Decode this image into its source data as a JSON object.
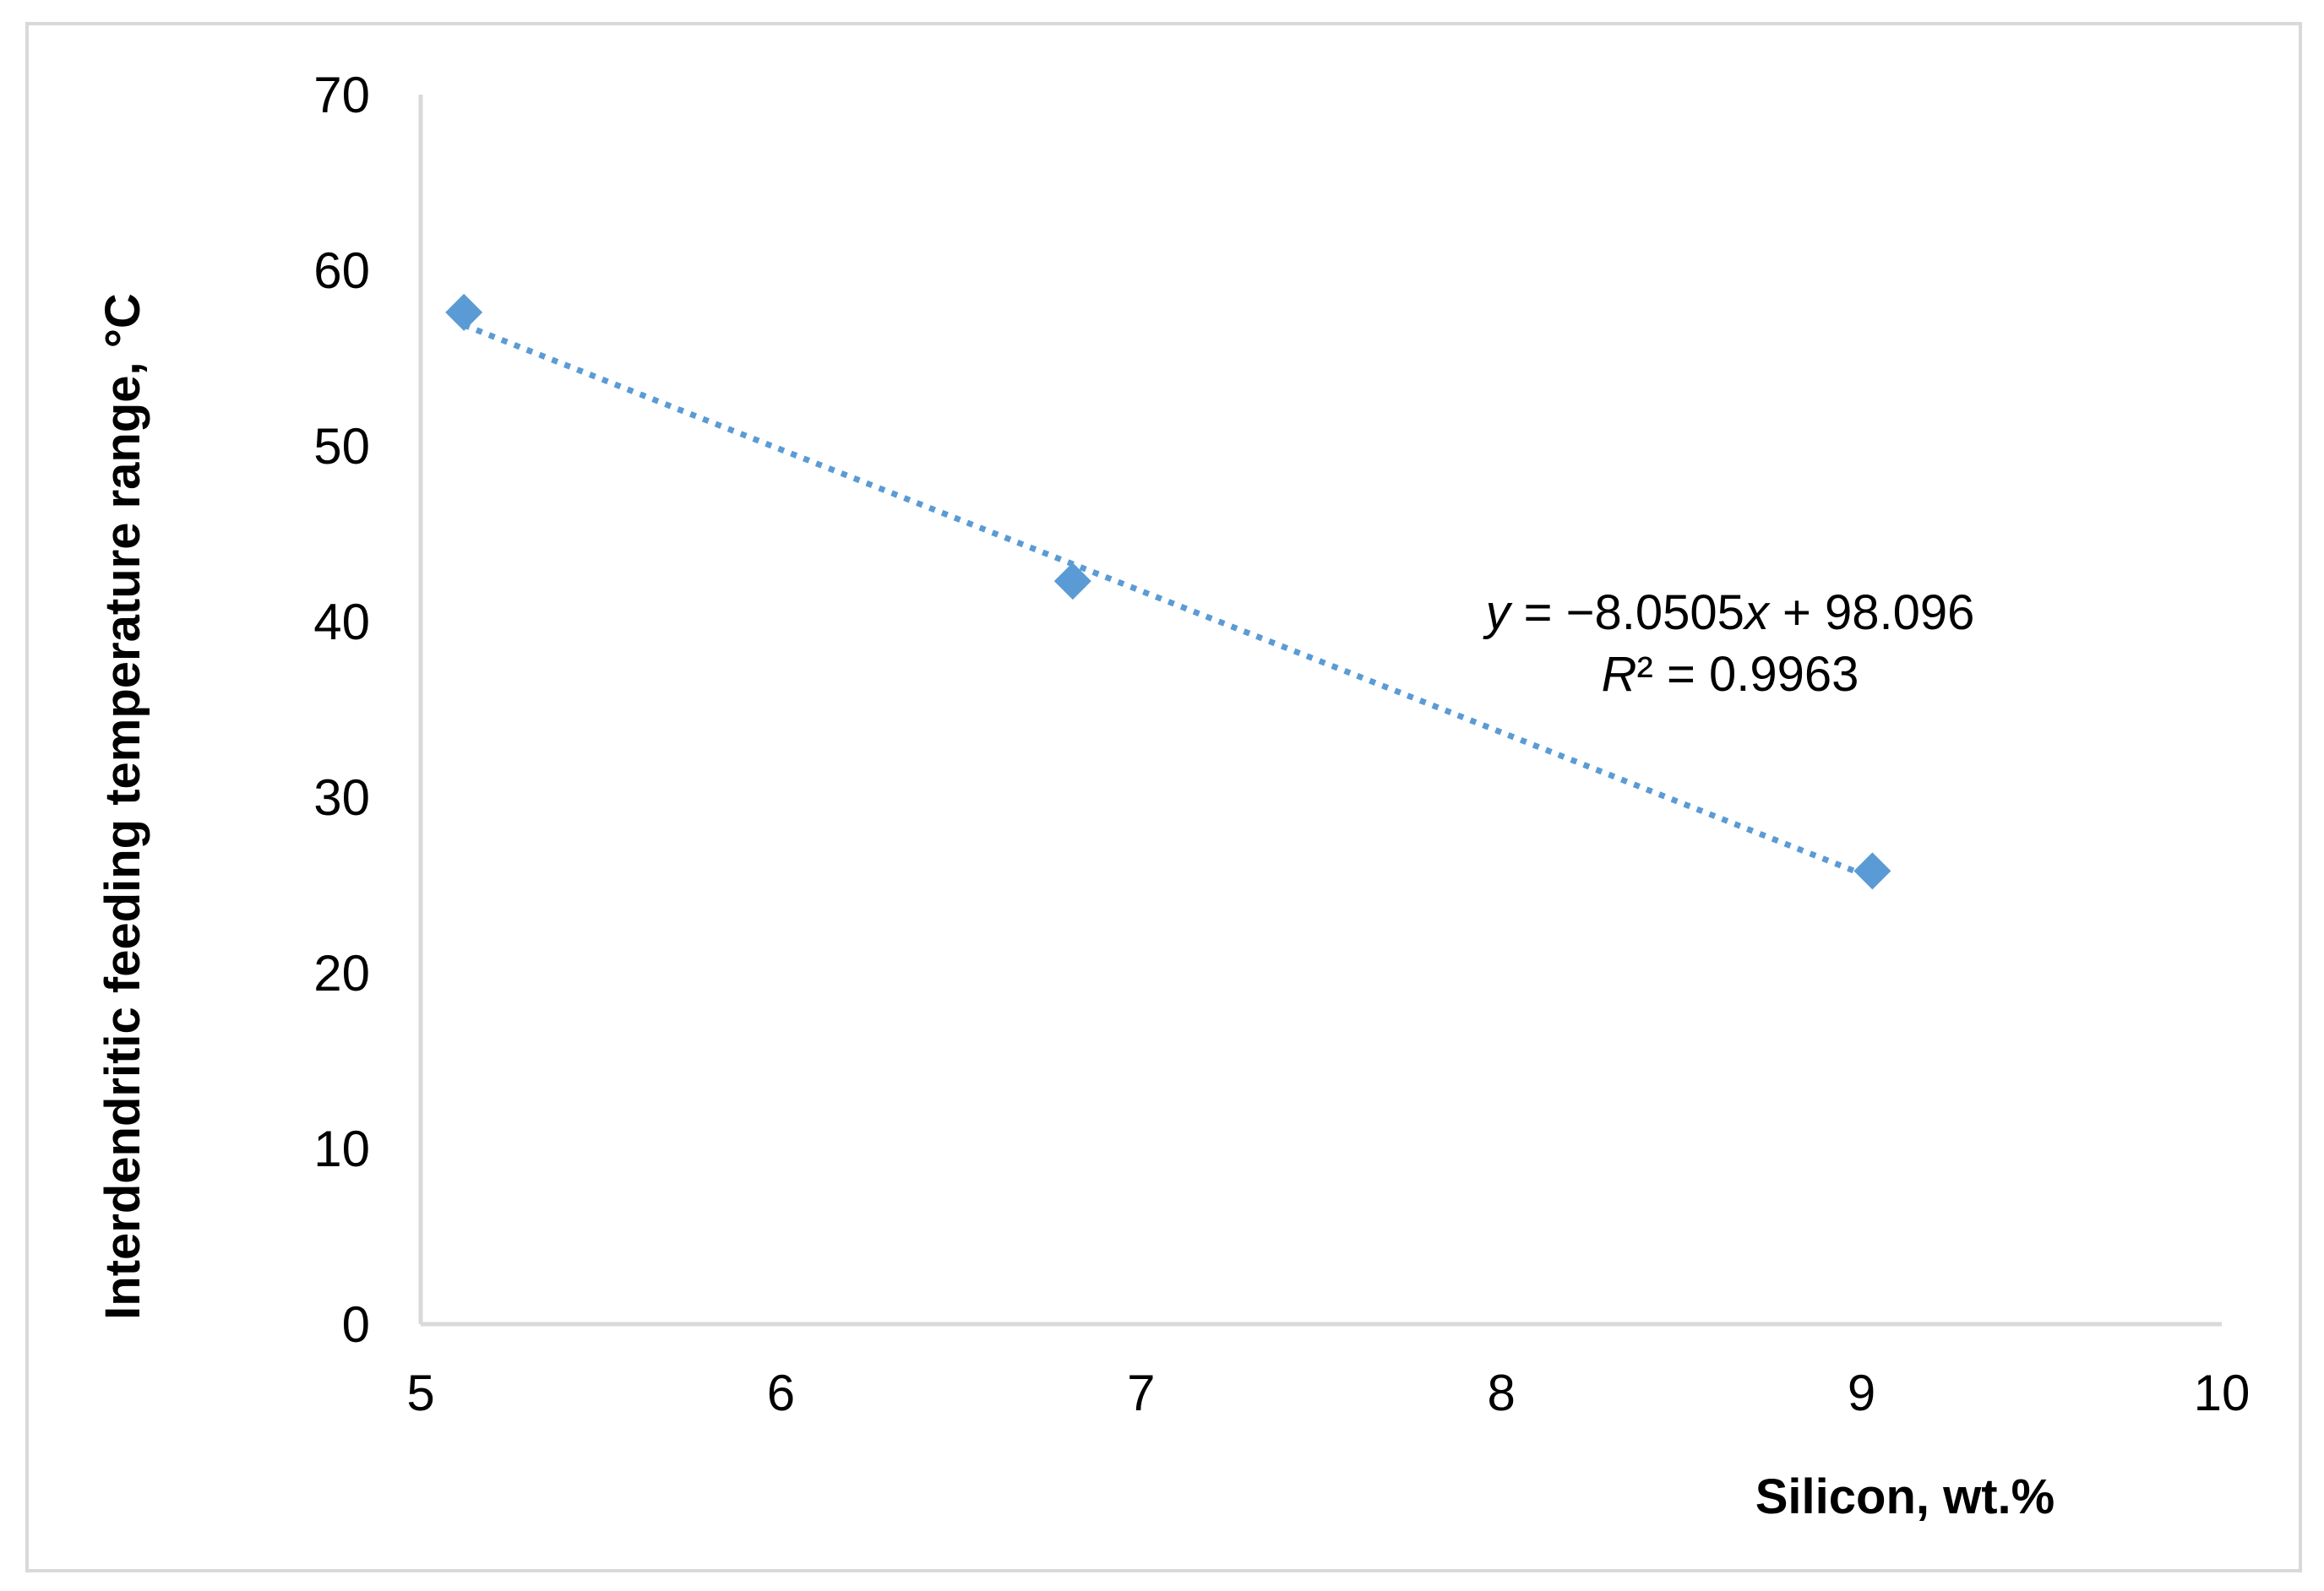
{
  "chart_data": {
    "type": "scatter",
    "title": "",
    "xlabel": "Silicon, wt.%",
    "ylabel": "Interdendritic feeding temperature range, °C",
    "xlim": [
      5,
      10
    ],
    "ylim": [
      0,
      70
    ],
    "x_ticks": [
      5,
      6,
      7,
      8,
      9,
      10
    ],
    "y_ticks": [
      0,
      10,
      20,
      30,
      40,
      50,
      60,
      70
    ],
    "grid": false,
    "legend": "none",
    "series": [
      {
        "marker": "diamond",
        "color": "#5b9bd5",
        "points": [
          {
            "x": 5.12,
            "y": 57.6
          },
          {
            "x": 6.81,
            "y": 42.3
          },
          {
            "x": 9.03,
            "y": 25.8
          }
        ]
      }
    ],
    "trendline": {
      "type": "linear",
      "style": "dotted",
      "color": "#5b9bd5",
      "slope": -8.0505,
      "intercept": 98.096,
      "x_range": [
        5.12,
        9.03
      ]
    },
    "annotations": {
      "equation": "y = −8.0505x + 98.096",
      "r_squared": "R² = 0.9963"
    },
    "axis_color": "#d9d9d9"
  }
}
